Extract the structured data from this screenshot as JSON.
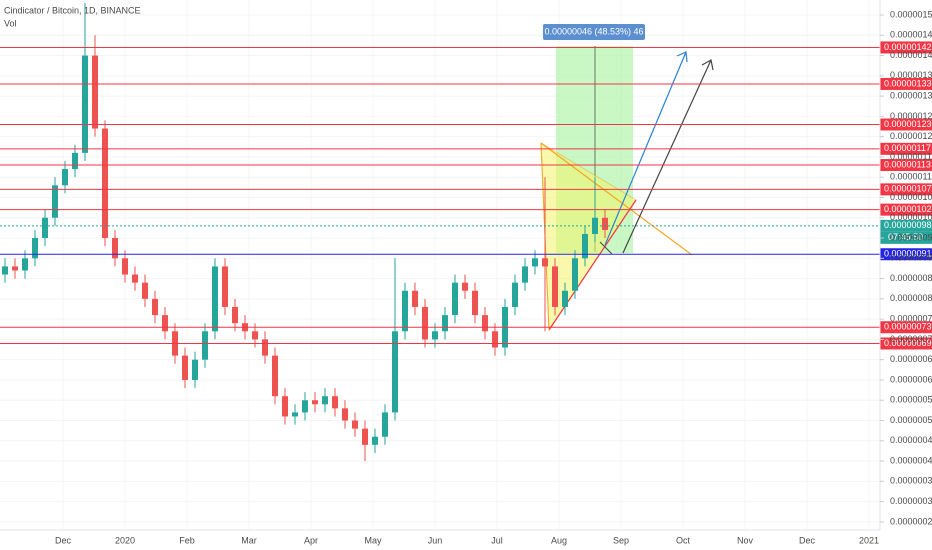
{
  "chart_data": {
    "type": "candlestick",
    "title": "Cindicator / Bitcoin, 1D, BINANCE",
    "subtitle": "Vol",
    "annotation": "0.00000046 (48.53%) 46",
    "countdown": "07:45:50",
    "up_color": "#26a69a",
    "down_color": "#ef5350",
    "ylim": [
      2.3e-07,
      1.537e-06
    ],
    "yticks": [
      {
        "value": 2.5e-07,
        "label": "0.00000025"
      },
      {
        "value": 3e-07,
        "label": "0.00000030"
      },
      {
        "value": 3.5e-07,
        "label": "0.00000035"
      },
      {
        "value": 4e-07,
        "label": "0.00000040"
      },
      {
        "value": 4.5e-07,
        "label": "0.00000045"
      },
      {
        "value": 5e-07,
        "label": "0.00000050"
      },
      {
        "value": 5.5e-07,
        "label": "0.00000055"
      },
      {
        "value": 6e-07,
        "label": "0.00000060"
      },
      {
        "value": 6.5e-07,
        "label": "0.00000065"
      },
      {
        "value": 7e-07,
        "label": "0.00000070"
      },
      {
        "value": 7.5e-07,
        "label": "0.00000075"
      },
      {
        "value": 8e-07,
        "label": "0.00000080"
      },
      {
        "value": 8.5e-07,
        "label": "0.00000085"
      },
      {
        "value": 9e-07,
        "label": "0.00000090"
      },
      {
        "value": 9.5e-07,
        "label": "0.00000095"
      },
      {
        "value": 1e-06,
        "label": "0.00000100"
      },
      {
        "value": 1.05e-06,
        "label": "0.00000105"
      },
      {
        "value": 1.1e-06,
        "label": "0.00000110"
      },
      {
        "value": 1.15e-06,
        "label": "0.00000115"
      },
      {
        "value": 1.2e-06,
        "label": "0.00000120"
      },
      {
        "value": 1.25e-06,
        "label": "0.00000125"
      },
      {
        "value": 1.3e-06,
        "label": "0.00000130"
      },
      {
        "value": 1.35e-06,
        "label": "0.00000135"
      },
      {
        "value": 1.4e-06,
        "label": "0.00000140"
      },
      {
        "value": 1.45e-06,
        "label": "0.00000145"
      },
      {
        "value": 1.5e-06,
        "label": "0.00000150"
      }
    ],
    "xticks": [
      "Dec",
      "2020",
      "Feb",
      "Mar",
      "Apr",
      "May",
      "Jun",
      "Jul",
      "Aug",
      "Sep",
      "Oct",
      "Nov",
      "Dec",
      "2021"
    ],
    "levels": [
      {
        "value": 1.42e-06,
        "label": "0.00000142",
        "color": "#f23645"
      },
      {
        "value": 1.33e-06,
        "label": "0.00000133",
        "color": "#f23645"
      },
      {
        "value": 1.23e-06,
        "label": "0.00000123",
        "color": "#f23645"
      },
      {
        "value": 1.17e-06,
        "label": "0.00000117",
        "color": "#f23645"
      },
      {
        "value": 1.13e-06,
        "label": "0.00000113",
        "color": "#f23645"
      },
      {
        "value": 1.07e-06,
        "label": "0.00000107",
        "color": "#f23645"
      },
      {
        "value": 1.02e-06,
        "label": "0.00000102",
        "color": "#f23645"
      },
      {
        "value": 9.8e-07,
        "label": "0.00000098",
        "color": "#26a69a"
      },
      {
        "value": 9.1e-07,
        "label": "0.00000091",
        "color": "#2424e6"
      },
      {
        "value": 7.3e-07,
        "label": "0.00000073",
        "color": "#f23645"
      },
      {
        "value": 6.9e-07,
        "label": "0.00000069",
        "color": "#f23645"
      }
    ],
    "open": [
      8.6e-07,
      8.8e-07,
      8.7e-07,
      9e-07,
      9.5e-07,
      1e-06,
      1.08e-06,
      1.12e-06,
      1.16e-06,
      1.4e-06,
      1.22e-06,
      9.5e-07,
      9e-07,
      8.6e-07,
      8.4e-07,
      8e-07,
      7.6e-07,
      7.2e-07,
      6.6e-07,
      6e-07,
      6.5e-07,
      7.2e-07,
      8.8e-07,
      7.8e-07,
      7.4e-07,
      7.2e-07,
      7e-07,
      6.6e-07,
      5.6e-07,
      5.1e-07,
      5.2e-07,
      5.5e-07,
      5.4e-07,
      5.6e-07,
      5.3e-07,
      5e-07,
      4.8e-07,
      4.4e-07,
      4.6e-07,
      5.2e-07,
      7.2e-07,
      8.2e-07,
      7.8e-07,
      7e-07,
      7.2e-07,
      7.6e-07,
      8.4e-07,
      8.2e-07,
      7.6e-07,
      7.2e-07,
      6.8e-07,
      7.8e-07,
      8.4e-07,
      8.8e-07,
      9e-07,
      8.8e-07,
      7.8e-07,
      8.2e-07,
      9e-07,
      9.6e-07,
      1e-06
    ],
    "high": [
      9e-07,
      9e-07,
      9.2e-07,
      9.7e-07,
      1.02e-06,
      1.1e-06,
      1.14e-06,
      1.18e-06,
      1.53e-06,
      1.45e-06,
      1.24e-06,
      9.7e-07,
      9.2e-07,
      8.8e-07,
      8.6e-07,
      8.2e-07,
      7.8e-07,
      7.4e-07,
      6.8e-07,
      6.7e-07,
      7.4e-07,
      9e-07,
      9e-07,
      8e-07,
      7.6e-07,
      7.4e-07,
      7.2e-07,
      6.8e-07,
      5.8e-07,
      5.4e-07,
      5.7e-07,
      5.7e-07,
      5.8e-07,
      5.8e-07,
      5.5e-07,
      5.2e-07,
      5e-07,
      4.8e-07,
      5.4e-07,
      9e-07,
      8.4e-07,
      8.4e-07,
      8e-07,
      7.4e-07,
      7.8e-07,
      8.6e-07,
      8.6e-07,
      8.4e-07,
      7.8e-07,
      7.4e-07,
      8e-07,
      8.6e-07,
      9e-07,
      9.2e-07,
      1.1e-06,
      9e-07,
      8.4e-07,
      9.2e-07,
      9.8e-07,
      1.1e-06,
      1.02e-06
    ],
    "low": [
      8.4e-07,
      8.5e-07,
      8.5e-07,
      8.8e-07,
      9.3e-07,
      9.8e-07,
      1.06e-06,
      1.1e-06,
      1.14e-06,
      1.2e-06,
      9.3e-07,
      8.8e-07,
      8.4e-07,
      8.2e-07,
      7.8e-07,
      7.4e-07,
      7e-07,
      6.4e-07,
      5.8e-07,
      5.8e-07,
      6.3e-07,
      7e-07,
      7.6e-07,
      7.2e-07,
      7e-07,
      6.8e-07,
      6.4e-07,
      5.4e-07,
      4.9e-07,
      4.9e-07,
      5e-07,
      5.2e-07,
      5.2e-07,
      5.1e-07,
      4.8e-07,
      4.6e-07,
      4e-07,
      4.2e-07,
      4.4e-07,
      5e-07,
      7e-07,
      7.6e-07,
      6.8e-07,
      6.8e-07,
      7e-07,
      7.4e-07,
      8e-07,
      7.4e-07,
      7e-07,
      6.6e-07,
      6.6e-07,
      7.6e-07,
      8.2e-07,
      8.6e-07,
      7.2e-07,
      7.6e-07,
      7.6e-07,
      8e-07,
      8.8e-07,
      9.4e-07,
      9.5e-07
    ],
    "close": [
      8.8e-07,
      8.7e-07,
      9e-07,
      9.5e-07,
      1e-06,
      1.08e-06,
      1.12e-06,
      1.16e-06,
      1.4e-06,
      1.22e-06,
      9.5e-07,
      9e-07,
      8.6e-07,
      8.4e-07,
      8e-07,
      7.6e-07,
      7.2e-07,
      6.6e-07,
      6e-07,
      6.5e-07,
      7.2e-07,
      8.8e-07,
      7.8e-07,
      7.4e-07,
      7.2e-07,
      7e-07,
      6.6e-07,
      5.6e-07,
      5.1e-07,
      5.2e-07,
      5.5e-07,
      5.4e-07,
      5.6e-07,
      5.3e-07,
      5e-07,
      4.8e-07,
      4.4e-07,
      4.6e-07,
      5.2e-07,
      7.2e-07,
      8.2e-07,
      7.8e-07,
      7e-07,
      7.2e-07,
      7.6e-07,
      8.4e-07,
      8.2e-07,
      7.6e-07,
      7.2e-07,
      6.8e-07,
      7.8e-07,
      8.4e-07,
      8.8e-07,
      9e-07,
      8.8e-07,
      7.8e-07,
      8.2e-07,
      9e-07,
      9.6e-07,
      1e-06,
      9.7e-07
    ]
  }
}
